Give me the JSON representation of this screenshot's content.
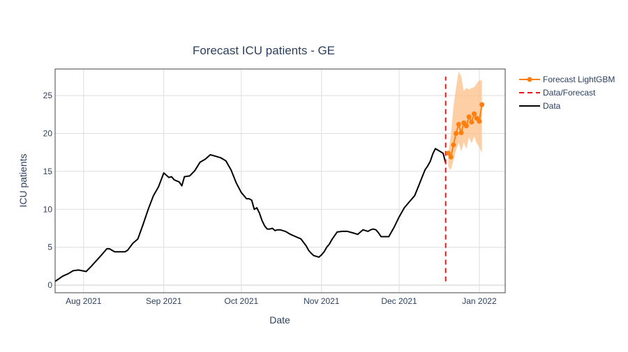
{
  "chart_data": {
    "type": "line",
    "title": "Forecast ICU patients - GE",
    "xlabel": "Date",
    "ylabel": "ICU patients",
    "x_type": "date",
    "xlim": [
      "2021-07-21",
      "2022-01-11"
    ],
    "ylim": [
      -1,
      28.5
    ],
    "x_ticks": [
      {
        "date": "2021-08-01",
        "label": "Aug 2021"
      },
      {
        "date": "2021-09-01",
        "label": "Sep 2021"
      },
      {
        "date": "2021-10-01",
        "label": "Oct 2021"
      },
      {
        "date": "2021-11-01",
        "label": "Nov 2021"
      },
      {
        "date": "2021-12-01",
        "label": "Dec 2021"
      },
      {
        "date": "2022-01-01",
        "label": "Jan 2022"
      }
    ],
    "y_ticks": [
      0,
      5,
      10,
      15,
      20,
      25
    ],
    "grid": true,
    "legend_position": "top-right outside",
    "colors": {
      "data": "#000000",
      "forecast": "#ff7f0e",
      "divider": "#e31a1c",
      "band": "#fdbf86",
      "grid": "#dddddd",
      "text": "#2a3f5f"
    },
    "series": [
      {
        "name": "Forecast LightGBM",
        "style": "line+markers",
        "x": [
          "2021-12-20",
          "2021-12-21",
          "2021-12-22",
          "2021-12-23",
          "2021-12-24",
          "2021-12-25",
          "2021-12-26",
          "2021-12-27",
          "2021-12-28",
          "2021-12-29",
          "2021-12-30",
          "2021-12-31",
          "2022-01-01",
          "2022-01-02"
        ],
        "y": [
          17.4,
          16.9,
          18.5,
          20.0,
          21.2,
          20.1,
          21.4,
          21.0,
          22.2,
          21.5,
          22.6,
          22.0,
          21.6,
          23.8
        ],
        "band_lower": [
          15.6,
          15.2,
          16.5,
          17.8,
          18.8,
          17.6,
          18.8,
          18.0,
          19.5,
          18.7,
          19.6,
          18.7,
          18.2,
          17.4
        ],
        "band_upper": [
          17.2,
          19.8,
          23.6,
          26.0,
          28.2,
          27.5,
          25.6,
          26.0,
          25.8,
          26.0,
          26.1,
          26.6,
          27.0,
          27.0
        ]
      },
      {
        "name": "Data/Forecast",
        "style": "dash",
        "x": [
          "2021-12-19",
          "2021-12-19"
        ],
        "y": [
          0.5,
          27.5
        ]
      },
      {
        "name": "Data",
        "style": "line",
        "x": [
          "2021-07-21",
          "2021-07-24",
          "2021-07-26",
          "2021-07-28",
          "2021-07-30",
          "2021-08-02",
          "2021-08-04",
          "2021-08-08",
          "2021-08-10",
          "2021-08-11",
          "2021-08-13",
          "2021-08-15",
          "2021-08-17",
          "2021-08-18",
          "2021-08-20",
          "2021-08-22",
          "2021-08-24",
          "2021-08-26",
          "2021-08-28",
          "2021-08-30",
          "2021-09-01",
          "2021-09-03",
          "2021-09-04",
          "2021-09-05",
          "2021-09-07",
          "2021-09-08",
          "2021-09-09",
          "2021-09-11",
          "2021-09-13",
          "2021-09-15",
          "2021-09-17",
          "2021-09-19",
          "2021-09-21",
          "2021-09-23",
          "2021-09-25",
          "2021-09-27",
          "2021-09-29",
          "2021-10-01",
          "2021-10-02",
          "2021-10-03",
          "2021-10-04",
          "2021-10-05",
          "2021-10-06",
          "2021-10-07",
          "2021-10-08",
          "2021-10-09",
          "2021-10-10",
          "2021-10-11",
          "2021-10-12",
          "2021-10-13",
          "2021-10-14",
          "2021-10-15",
          "2021-10-16",
          "2021-10-17",
          "2021-10-18",
          "2021-10-20",
          "2021-10-22",
          "2021-10-24",
          "2021-10-26",
          "2021-10-27",
          "2021-10-28",
          "2021-10-29",
          "2021-10-30",
          "2021-10-31",
          "2021-11-01",
          "2021-11-02",
          "2021-11-03",
          "2021-11-04",
          "2021-11-05",
          "2021-11-07",
          "2021-11-09",
          "2021-11-11",
          "2021-11-13",
          "2021-11-15",
          "2021-11-17",
          "2021-11-19",
          "2021-11-20",
          "2021-11-21",
          "2021-11-22",
          "2021-11-23",
          "2021-11-24",
          "2021-11-25",
          "2021-11-27",
          "2021-11-29",
          "2021-12-01",
          "2021-12-03",
          "2021-12-05",
          "2021-12-07",
          "2021-12-09",
          "2021-12-11",
          "2021-12-12",
          "2021-12-13",
          "2021-12-14",
          "2021-12-15",
          "2021-12-16",
          "2021-12-17",
          "2021-12-18",
          "2021-12-19"
        ],
        "y": [
          0.5,
          1.2,
          1.5,
          1.9,
          2.0,
          1.8,
          2.5,
          4.0,
          4.8,
          4.8,
          4.4,
          4.4,
          4.4,
          4.6,
          5.5,
          6.1,
          8.0,
          10.0,
          11.8,
          13.0,
          14.8,
          14.2,
          14.3,
          13.9,
          13.6,
          13.1,
          14.3,
          14.4,
          15.1,
          16.2,
          16.6,
          17.2,
          17.0,
          16.8,
          16.4,
          15.2,
          13.5,
          12.2,
          11.8,
          11.4,
          11.4,
          11.2,
          10.0,
          10.2,
          9.5,
          8.5,
          7.8,
          7.4,
          7.4,
          7.5,
          7.2,
          7.3,
          7.3,
          7.2,
          7.1,
          6.7,
          6.4,
          6.1,
          5.2,
          4.6,
          4.2,
          3.9,
          3.8,
          3.7,
          4.0,
          4.4,
          5.0,
          5.4,
          6.0,
          7.0,
          7.1,
          7.1,
          6.9,
          6.7,
          7.3,
          7.1,
          7.3,
          7.4,
          7.3,
          6.9,
          6.4,
          6.4,
          6.4,
          7.6,
          9.0,
          10.2,
          11.0,
          11.8,
          13.5,
          15.2,
          15.7,
          16.3,
          17.3,
          18.0,
          17.8,
          17.6,
          17.4,
          16.1
        ]
      }
    ]
  }
}
